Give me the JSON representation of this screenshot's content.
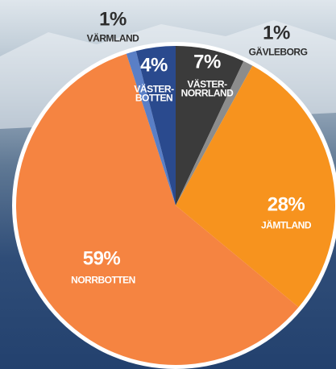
{
  "chart_data": {
    "type": "pie",
    "categories": [
      "VÄSTER-\nNORRLAND",
      "GÄVLEBORG",
      "JÄMTLAND",
      "NORRBOTTEN",
      "VÄRMLAND",
      "VÄSTER-\nBOTTEN"
    ],
    "values": [
      7,
      1,
      28,
      59,
      1,
      4
    ],
    "value_labels": [
      "7%",
      "1%",
      "28%",
      "59%",
      "1%",
      "4%"
    ],
    "colors": [
      "#3b3b3b",
      "#8c8c8c",
      "#f7931e",
      "#f58441",
      "#5a7fc6",
      "#2a4a8e"
    ]
  }
}
